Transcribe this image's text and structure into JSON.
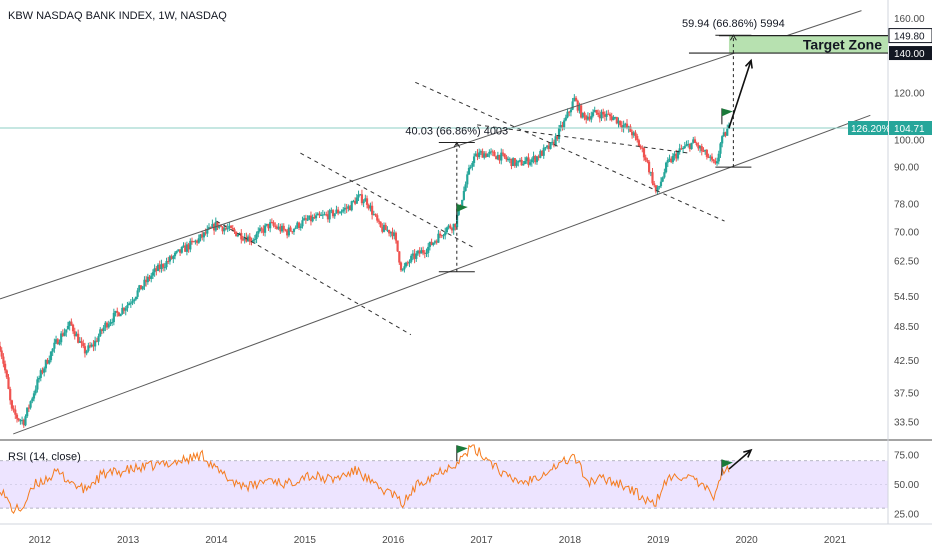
{
  "chart_data": {
    "type": "candlestick",
    "title": "KBW NASDAQ BANK INDEX, 1W, NASDAQ",
    "price_axis": {
      "scale": "log",
      "range": [
        31.5,
        168
      ],
      "ticks": [
        "160.00",
        "120.00",
        "100.00",
        "90.00",
        "78.00",
        "70.00",
        "62.50",
        "54.50",
        "48.50",
        "42.50",
        "37.50",
        "33.50"
      ],
      "tick_values": [
        160,
        120,
        100,
        90,
        78,
        70,
        62.5,
        54.5,
        48.5,
        42.5,
        37.5,
        33.5
      ],
      "badges": [
        {
          "text": "149.80",
          "value": 149.8,
          "style": "dark-outline"
        },
        {
          "text": "140.00",
          "value": 140,
          "style": "dark"
        },
        {
          "text": "126.20%",
          "value": 104.71,
          "style": "green"
        },
        {
          "text": "104.71",
          "value": 104.71,
          "style": "green"
        }
      ]
    },
    "time_axis": {
      "range": [
        2011.55,
        2021.6
      ],
      "labels": [
        "2012",
        "2013",
        "2014",
        "2015",
        "2016",
        "2017",
        "2018",
        "2019",
        "2020",
        "2021"
      ],
      "label_values": [
        2012,
        2013,
        2014,
        2015,
        2016,
        2017,
        2018,
        2019,
        2020,
        2021
      ]
    },
    "price_keypoints": [
      [
        2011.55,
        45
      ],
      [
        2011.62,
        40
      ],
      [
        2011.68,
        35
      ],
      [
        2011.75,
        34
      ],
      [
        2011.82,
        33.6
      ],
      [
        2012.0,
        40
      ],
      [
        2012.2,
        46
      ],
      [
        2012.35,
        49
      ],
      [
        2012.5,
        44
      ],
      [
        2012.6,
        45
      ],
      [
        2012.75,
        49
      ],
      [
        2013.0,
        53
      ],
      [
        2013.3,
        60
      ],
      [
        2013.6,
        65
      ],
      [
        2013.8,
        68
      ],
      [
        2014.0,
        72
      ],
      [
        2014.2,
        70
      ],
      [
        2014.4,
        68
      ],
      [
        2014.6,
        72
      ],
      [
        2014.8,
        70
      ],
      [
        2015.0,
        73
      ],
      [
        2015.3,
        75
      ],
      [
        2015.5,
        77
      ],
      [
        2015.6,
        80
      ],
      [
        2015.7,
        79
      ],
      [
        2015.85,
        71
      ],
      [
        2016.0,
        70
      ],
      [
        2016.1,
        60
      ],
      [
        2016.2,
        63
      ],
      [
        2016.4,
        66
      ],
      [
        2016.6,
        71
      ],
      [
        2016.7,
        72
      ],
      [
        2016.8,
        82
      ],
      [
        2016.9,
        93
      ],
      [
        2017.0,
        95
      ],
      [
        2017.2,
        94
      ],
      [
        2017.4,
        91
      ],
      [
        2017.6,
        93
      ],
      [
        2017.8,
        98
      ],
      [
        2017.95,
        108
      ],
      [
        2018.05,
        117
      ],
      [
        2018.15,
        109
      ],
      [
        2018.3,
        111
      ],
      [
        2018.5,
        109
      ],
      [
        2018.7,
        103
      ],
      [
        2018.85,
        94
      ],
      [
        2018.98,
        81
      ],
      [
        2019.1,
        91
      ],
      [
        2019.25,
        96
      ],
      [
        2019.4,
        99
      ],
      [
        2019.55,
        94
      ],
      [
        2019.65,
        90
      ],
      [
        2019.7,
        98
      ],
      [
        2019.75,
        102
      ],
      [
        2019.8,
        104.71
      ]
    ],
    "channel_lines": [
      {
        "style": "solid",
        "points": [
          [
            2011.55,
            54
          ],
          [
            2021.3,
            165
          ]
        ]
      },
      {
        "style": "solid",
        "points": [
          [
            2011.7,
            32
          ],
          [
            2021.4,
            110
          ]
        ]
      }
    ],
    "dashed_channels": [
      {
        "points": [
          [
            2014.95,
            95
          ],
          [
            2016.9,
            66
          ]
        ]
      },
      {
        "points": [
          [
            2014.0,
            73
          ],
          [
            2016.2,
            47
          ]
        ]
      },
      {
        "points": [
          [
            2016.95,
            106
          ],
          [
            2019.35,
            95
          ]
        ]
      },
      {
        "points": [
          [
            2016.25,
            125
          ],
          [
            2019.75,
            73
          ]
        ]
      }
    ],
    "measurements": [
      {
        "label": "40.03 (66.86%) 4003",
        "x": 2016.72,
        "y_low": 60,
        "y_high": 99
      },
      {
        "label": "59.94 (66.86%) 5994",
        "x": 2019.85,
        "y_low": 90,
        "y_high": 150
      }
    ],
    "target_zone": {
      "label": "Target Zone",
      "y_low": 140,
      "y_high": 149.8,
      "x_start": 2019.8,
      "x_end": 2021.6
    },
    "projection_arrow": {
      "from": [
        2019.8,
        104.71
      ],
      "to": [
        2020.05,
        136
      ]
    },
    "horizontal_level": {
      "value": 104.71
    },
    "flags": [
      {
        "x": 2016.72,
        "y": 78
      },
      {
        "x": 2019.72,
        "y": 113
      }
    ],
    "rsi": {
      "label": "RSI (14, close)",
      "ticks": [
        "75.00",
        "50.00",
        "25.00"
      ],
      "tick_values": [
        75,
        50,
        25
      ],
      "range": [
        20,
        85
      ],
      "band": [
        30,
        70
      ],
      "keypoints": [
        [
          2011.55,
          48
        ],
        [
          2011.62,
          38
        ],
        [
          2011.7,
          28
        ],
        [
          2011.8,
          30
        ],
        [
          2011.95,
          50
        ],
        [
          2012.2,
          60
        ],
        [
          2012.5,
          45
        ],
        [
          2012.7,
          58
        ],
        [
          2013.0,
          62
        ],
        [
          2013.3,
          66
        ],
        [
          2013.6,
          70
        ],
        [
          2013.85,
          75
        ],
        [
          2014.0,
          62
        ],
        [
          2014.2,
          52
        ],
        [
          2014.4,
          48
        ],
        [
          2014.6,
          55
        ],
        [
          2014.8,
          50
        ],
        [
          2015.0,
          58
        ],
        [
          2015.3,
          54
        ],
        [
          2015.6,
          62
        ],
        [
          2015.8,
          48
        ],
        [
          2016.0,
          42
        ],
        [
          2016.1,
          33
        ],
        [
          2016.3,
          52
        ],
        [
          2016.6,
          64
        ],
        [
          2016.75,
          70
        ],
        [
          2016.88,
          81
        ],
        [
          2016.95,
          78
        ],
        [
          2017.1,
          70
        ],
        [
          2017.3,
          55
        ],
        [
          2017.5,
          52
        ],
        [
          2017.7,
          60
        ],
        [
          2017.9,
          68
        ],
        [
          2018.05,
          74
        ],
        [
          2018.2,
          52
        ],
        [
          2018.4,
          55
        ],
        [
          2018.6,
          50
        ],
        [
          2018.8,
          40
        ],
        [
          2018.95,
          32
        ],
        [
          2019.1,
          54
        ],
        [
          2019.3,
          58
        ],
        [
          2019.5,
          48
        ],
        [
          2019.62,
          40
        ],
        [
          2019.72,
          60
        ],
        [
          2019.8,
          63
        ]
      ],
      "arrow": {
        "from": [
          2019.8,
          63
        ],
        "to": [
          2020.05,
          79
        ]
      },
      "flag": {
        "x": 2019.72,
        "y": 66
      }
    },
    "colors": {
      "up": "#26a69a",
      "down": "#ef5350",
      "rsi_line": "#f57c1f",
      "rsi_band": "#ede4ff",
      "target": "#b7e1b0",
      "level": "#8ccfc4"
    }
  }
}
